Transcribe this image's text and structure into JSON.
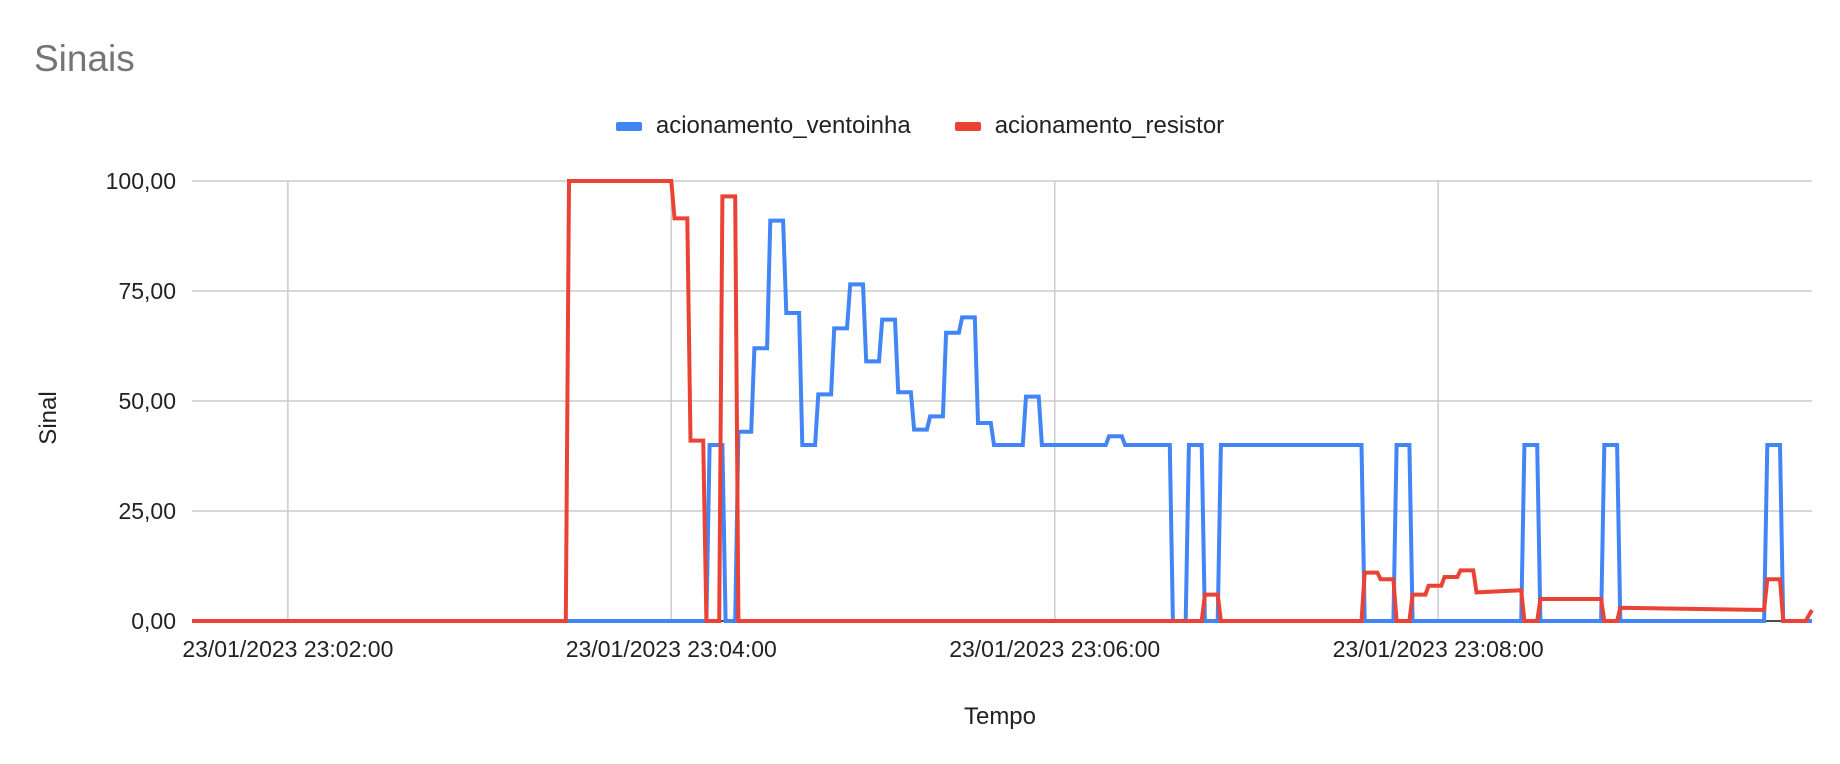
{
  "chart_data": {
    "type": "line",
    "title": "Sinais",
    "xlabel": "Tempo",
    "ylabel": "Sinal",
    "x_start": "23/01/2023 23:01:30",
    "x_end": "23/01/2023 23:09:57",
    "ylim": [
      0,
      100
    ],
    "yticks": [
      "0,00",
      "25,00",
      "50,00",
      "75,00",
      "100,00"
    ],
    "xticks": [
      "23/01/2023 23:02:00",
      "23/01/2023 23:04:00",
      "23/01/2023 23:06:00",
      "23/01/2023 23:08:00"
    ],
    "grid": true,
    "legend_position": "top",
    "series": [
      {
        "name": "acionamento_ventoinha",
        "color": "#4285f4",
        "points": [
          [
            "23:01:30",
            0
          ],
          [
            "23:04:11",
            0
          ],
          [
            "23:04:12",
            40
          ],
          [
            "23:04:16",
            40
          ],
          [
            "23:04:17",
            0
          ],
          [
            "23:04:20",
            0
          ],
          [
            "23:04:21",
            43
          ],
          [
            "23:04:25",
            43
          ],
          [
            "23:04:26",
            62
          ],
          [
            "23:04:30",
            62
          ],
          [
            "23:04:31",
            91
          ],
          [
            "23:04:35",
            91
          ],
          [
            "23:04:36",
            70
          ],
          [
            "23:04:40",
            70
          ],
          [
            "23:04:41",
            40
          ],
          [
            "23:04:45",
            40
          ],
          [
            "23:04:46",
            51.5
          ],
          [
            "23:04:50",
            51.5
          ],
          [
            "23:04:51",
            66.5
          ],
          [
            "23:04:55",
            66.5
          ],
          [
            "23:04:56",
            76.5
          ],
          [
            "23:05:00",
            76.5
          ],
          [
            "23:05:01",
            59
          ],
          [
            "23:05:05",
            59
          ],
          [
            "23:05:06",
            68.5
          ],
          [
            "23:05:10",
            68.5
          ],
          [
            "23:05:11",
            52
          ],
          [
            "23:05:15",
            52
          ],
          [
            "23:05:16",
            43.5
          ],
          [
            "23:05:20",
            43.5
          ],
          [
            "23:05:21",
            46.5
          ],
          [
            "23:05:25",
            46.5
          ],
          [
            "23:05:26",
            65.5
          ],
          [
            "23:05:30",
            65.5
          ],
          [
            "23:05:31",
            69
          ],
          [
            "23:05:35",
            69
          ],
          [
            "23:05:36",
            45
          ],
          [
            "23:05:40",
            45
          ],
          [
            "23:05:41",
            40
          ],
          [
            "23:05:50",
            40
          ],
          [
            "23:05:51",
            51
          ],
          [
            "23:05:55",
            51
          ],
          [
            "23:05:56",
            40
          ],
          [
            "23:06:16",
            40
          ],
          [
            "23:06:17",
            42
          ],
          [
            "23:06:21",
            42
          ],
          [
            "23:06:22",
            40
          ],
          [
            "23:06:36",
            40
          ],
          [
            "23:06:37",
            0
          ],
          [
            "23:06:41",
            0
          ],
          [
            "23:06:42",
            40
          ],
          [
            "23:06:46",
            40
          ],
          [
            "23:06:47",
            0
          ],
          [
            "23:06:51",
            0
          ],
          [
            "23:06:52",
            40
          ],
          [
            "23:07:36",
            40
          ],
          [
            "23:07:37",
            0
          ],
          [
            "23:07:46",
            0
          ],
          [
            "23:07:47",
            40
          ],
          [
            "23:07:51",
            40
          ],
          [
            "23:07:52",
            0
          ],
          [
            "23:08:26",
            0
          ],
          [
            "23:08:27",
            40
          ],
          [
            "23:08:31",
            40
          ],
          [
            "23:08:32",
            0
          ],
          [
            "23:08:51",
            0
          ],
          [
            "23:08:52",
            40
          ],
          [
            "23:08:56",
            40
          ],
          [
            "23:08:57",
            0
          ],
          [
            "23:09:42",
            0
          ],
          [
            "23:09:43",
            40
          ],
          [
            "23:09:47",
            40
          ],
          [
            "23:09:48",
            0
          ],
          [
            "23:09:57",
            0
          ]
        ]
      },
      {
        "name": "acionamento_resistor",
        "color": "#ea4335",
        "points": [
          [
            "23:01:30",
            0
          ],
          [
            "23:03:27",
            0
          ],
          [
            "23:03:28",
            100
          ],
          [
            "23:04:00",
            100
          ],
          [
            "23:04:01",
            91.5
          ],
          [
            "23:04:05",
            91.5
          ],
          [
            "23:04:06",
            41
          ],
          [
            "23:04:10",
            41
          ],
          [
            "23:04:11",
            0
          ],
          [
            "23:04:15",
            0
          ],
          [
            "23:04:16",
            96.5
          ],
          [
            "23:04:20",
            96.5
          ],
          [
            "23:04:21",
            0
          ],
          [
            "23:06:36",
            0
          ],
          [
            "23:06:41",
            0
          ],
          [
            "23:06:46",
            0
          ],
          [
            "23:06:47",
            6
          ],
          [
            "23:06:51",
            6
          ],
          [
            "23:06:52",
            0
          ],
          [
            "23:07:36",
            0
          ],
          [
            "23:07:37",
            11
          ],
          [
            "23:07:41",
            11
          ],
          [
            "23:07:42",
            9.5
          ],
          [
            "23:07:46",
            9.5
          ],
          [
            "23:07:47",
            0
          ],
          [
            "23:07:51",
            0
          ],
          [
            "23:07:52",
            6
          ],
          [
            "23:07:56",
            6
          ],
          [
            "23:07:57",
            8
          ],
          [
            "23:08:01",
            8
          ],
          [
            "23:08:02",
            10
          ],
          [
            "23:08:06",
            10
          ],
          [
            "23:08:07",
            11.5
          ],
          [
            "23:08:11",
            11.5
          ],
          [
            "23:08:12",
            6.5
          ],
          [
            "23:08:26",
            7
          ],
          [
            "23:08:27",
            0
          ],
          [
            "23:08:31",
            0
          ],
          [
            "23:08:32",
            5
          ],
          [
            "23:08:51",
            5
          ],
          [
            "23:08:52",
            0
          ],
          [
            "23:08:56",
            0
          ],
          [
            "23:08:57",
            3
          ],
          [
            "23:09:42",
            2.5
          ],
          [
            "23:09:43",
            9.5
          ],
          [
            "23:09:47",
            9.5
          ],
          [
            "23:09:48",
            0
          ],
          [
            "23:09:55",
            0
          ],
          [
            "23:09:57",
            2.5
          ]
        ]
      }
    ]
  }
}
